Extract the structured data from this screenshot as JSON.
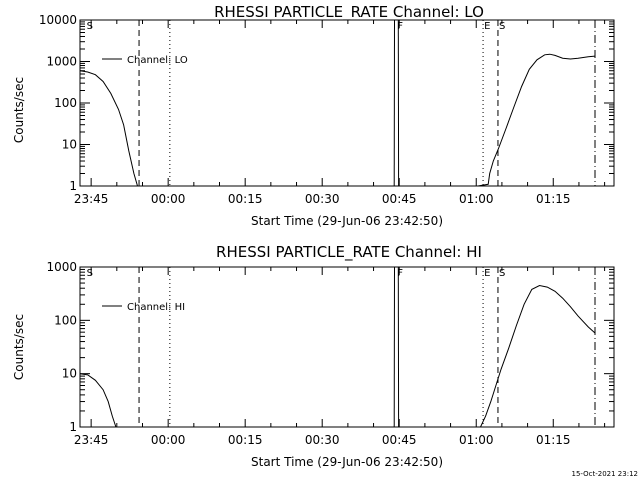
{
  "chart_data": [
    {
      "type": "line",
      "title": "RHESSI PARTICLE_RATE Channel: LO",
      "xlabel": "Start Time (29-Jun-06 23:42:50)",
      "ylabel": "Counts/sec",
      "yscale": "log",
      "ylim": [
        1,
        10000
      ],
      "xlim_minutes": [
        0,
        104
      ],
      "x_ticks": [
        {
          "min": 2.17,
          "label": "23:45"
        },
        {
          "min": 17.17,
          "label": "00:00"
        },
        {
          "min": 32.17,
          "label": "00:15"
        },
        {
          "min": 47.17,
          "label": "00:30"
        },
        {
          "min": 62.17,
          "label": "00:45"
        },
        {
          "min": 77.17,
          "label": "01:00"
        },
        {
          "min": 92.17,
          "label": "01:15"
        }
      ],
      "y_ticks": [
        {
          "value": 1,
          "label": "1"
        },
        {
          "value": 10,
          "label": "10"
        },
        {
          "value": 100,
          "label": "100"
        },
        {
          "value": 1000,
          "label": "1000"
        },
        {
          "value": 10000,
          "label": "10000"
        }
      ],
      "legend": "Channel: LO",
      "series": [
        {
          "name": "Channel: LO",
          "segments": [
            [
              [
                0,
                600
              ],
              [
                1.5,
                560
              ],
              [
                3,
                480
              ],
              [
                4.5,
                330
              ],
              [
                6,
                170
              ],
              [
                7.5,
                70
              ],
              [
                8.5,
                30
              ],
              [
                9.5,
                7
              ],
              [
                10.5,
                2
              ],
              [
                11.2,
                1
              ]
            ],
            [
              [
                61.2,
                1
              ],
              [
                61.25,
                10000
              ]
            ],
            [
              [
                62.0,
                10000
              ],
              [
                62.05,
                1
              ]
            ],
            [
              [
                77.5,
                1
              ],
              [
                79.5,
                1.1
              ],
              [
                79.8,
                2
              ],
              [
                80.5,
                4
              ],
              [
                81.5,
                8
              ],
              [
                83,
                25
              ],
              [
                84.5,
                80
              ],
              [
                86,
                250
              ],
              [
                87.5,
                650
              ],
              [
                89,
                1100
              ],
              [
                90.5,
                1450
              ],
              [
                91.5,
                1500
              ],
              [
                92.5,
                1400
              ],
              [
                94,
                1200
              ],
              [
                95.5,
                1150
              ],
              [
                97,
                1200
              ],
              [
                99,
                1300
              ],
              [
                100.3,
                1350
              ]
            ]
          ]
        }
      ],
      "markers": [
        {
          "min": 1.1,
          "label": "S",
          "style": "dash",
          "draw_line": false
        },
        {
          "min": 11.5,
          "label": "",
          "style": "dash",
          "draw_line": true
        },
        {
          "min": 17.5,
          "label": "",
          "style": "dot",
          "draw_line": true
        },
        {
          "min": 61.6,
          "label": "F",
          "style": "none",
          "draw_line": false
        },
        {
          "min": 78.5,
          "label": "E",
          "style": "dot",
          "draw_line": true
        },
        {
          "min": 81.4,
          "label": "S",
          "style": "dash",
          "draw_line": true
        },
        {
          "min": 100.3,
          "label": "",
          "style": "dashdot",
          "draw_line": true
        }
      ]
    },
    {
      "type": "line",
      "title": "RHESSI PARTICLE_RATE Channel: HI",
      "xlabel": "Start Time (29-Jun-06 23:42:50)",
      "ylabel": "Counts/sec",
      "yscale": "log",
      "ylim": [
        1,
        1000
      ],
      "xlim_minutes": [
        0,
        104
      ],
      "x_ticks": [
        {
          "min": 2.17,
          "label": "23:45"
        },
        {
          "min": 17.17,
          "label": "00:00"
        },
        {
          "min": 32.17,
          "label": "00:15"
        },
        {
          "min": 47.17,
          "label": "00:30"
        },
        {
          "min": 62.17,
          "label": "00:45"
        },
        {
          "min": 77.17,
          "label": "01:00"
        },
        {
          "min": 92.17,
          "label": "01:15"
        }
      ],
      "y_ticks": [
        {
          "value": 1,
          "label": "1"
        },
        {
          "value": 10,
          "label": "10"
        },
        {
          "value": 100,
          "label": "100"
        },
        {
          "value": 1000,
          "label": "1000"
        }
      ],
      "legend": "Channel: HI",
      "series": [
        {
          "name": "Channel: HI",
          "segments": [
            [
              [
                0,
                10
              ],
              [
                1.5,
                9.5
              ],
              [
                3,
                7.5
              ],
              [
                4.5,
                5
              ],
              [
                5.5,
                3
              ],
              [
                6.3,
                1.6
              ],
              [
                7,
                1
              ]
            ],
            [
              [
                61.2,
                1
              ],
              [
                61.25,
                1000
              ]
            ],
            [
              [
                62.0,
                1000
              ],
              [
                62.05,
                1
              ]
            ],
            [
              [
                78.0,
                1
              ],
              [
                79,
                1.6
              ],
              [
                80,
                3
              ],
              [
                81,
                6
              ],
              [
                82,
                12
              ],
              [
                83.5,
                30
              ],
              [
                85,
                80
              ],
              [
                86.5,
                200
              ],
              [
                88,
                380
              ],
              [
                89.5,
                450
              ],
              [
                91,
                420
              ],
              [
                92.5,
                350
              ],
              [
                94,
                260
              ],
              [
                95.5,
                180
              ],
              [
                97,
                120
              ],
              [
                99,
                75
              ],
              [
                100.3,
                58
              ]
            ]
          ]
        }
      ],
      "markers": [
        {
          "min": 1.1,
          "label": "S",
          "style": "dash",
          "draw_line": false
        },
        {
          "min": 11.5,
          "label": "",
          "style": "dash",
          "draw_line": true
        },
        {
          "min": 17.5,
          "label": "",
          "style": "dot",
          "draw_line": true
        },
        {
          "min": 61.6,
          "label": "F",
          "style": "none",
          "draw_line": false
        },
        {
          "min": 78.5,
          "label": "E",
          "style": "dot",
          "draw_line": true
        },
        {
          "min": 81.4,
          "label": "S",
          "style": "dash",
          "draw_line": true
        },
        {
          "min": 100.3,
          "label": "",
          "style": "dashdot",
          "draw_line": true
        }
      ]
    }
  ],
  "timestamp": "15-Oct-2021 23:12"
}
